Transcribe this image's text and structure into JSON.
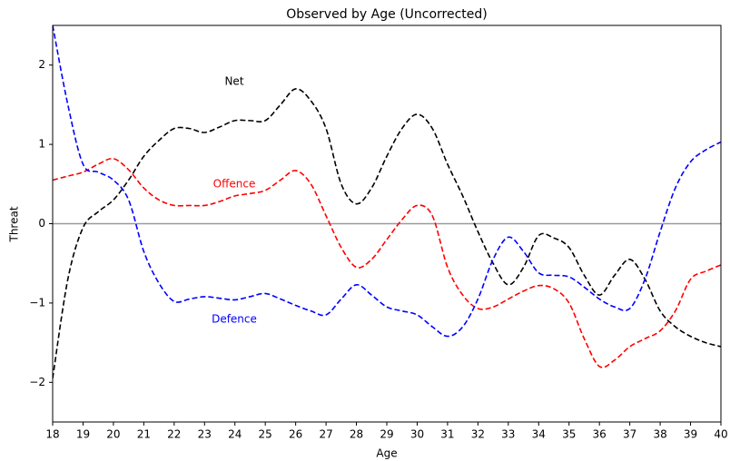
{
  "chart_data": {
    "type": "line",
    "title": "Observed by Age (Uncorrected)",
    "xlabel": "Age",
    "ylabel": "Threat",
    "x": [
      18,
      18.5,
      19,
      19.5,
      20,
      20.5,
      21,
      21.5,
      22,
      22.5,
      23,
      23.5,
      24,
      24.5,
      25,
      25.5,
      26,
      26.5,
      27,
      27.5,
      28,
      28.5,
      29,
      29.5,
      30,
      30.5,
      31,
      31.5,
      32,
      32.5,
      33,
      33.5,
      34,
      34.5,
      35,
      35.5,
      36,
      36.5,
      37,
      37.5,
      38,
      38.5,
      39,
      39.5,
      40
    ],
    "series": [
      {
        "name": "Net",
        "color": "#000000",
        "values": [
          -1.95,
          -0.7,
          -0.05,
          0.15,
          0.3,
          0.55,
          0.85,
          1.05,
          1.2,
          1.2,
          1.15,
          1.22,
          1.3,
          1.3,
          1.3,
          1.5,
          1.7,
          1.55,
          1.2,
          0.5,
          0.25,
          0.45,
          0.85,
          1.2,
          1.38,
          1.2,
          0.75,
          0.35,
          -0.1,
          -0.5,
          -0.77,
          -0.55,
          -0.15,
          -0.18,
          -0.3,
          -0.65,
          -0.9,
          -0.65,
          -0.45,
          -0.7,
          -1.1,
          -1.3,
          -1.42,
          -1.5,
          -1.55
        ]
      },
      {
        "name": "Offence",
        "color": "#ff0000",
        "values": [
          0.55,
          0.6,
          0.65,
          0.75,
          0.82,
          0.68,
          0.45,
          0.3,
          0.23,
          0.23,
          0.23,
          0.28,
          0.35,
          0.38,
          0.42,
          0.55,
          0.67,
          0.5,
          0.1,
          -0.3,
          -0.55,
          -0.45,
          -0.2,
          0.05,
          0.23,
          0.1,
          -0.55,
          -0.9,
          -1.07,
          -1.05,
          -0.95,
          -0.85,
          -0.78,
          -0.82,
          -1.0,
          -1.45,
          -1.8,
          -1.72,
          -1.55,
          -1.45,
          -1.35,
          -1.1,
          -0.7,
          -0.6,
          -0.52
        ]
      },
      {
        "name": "Defence",
        "color": "#0000ff",
        "values": [
          2.5,
          1.5,
          0.75,
          0.65,
          0.55,
          0.3,
          -0.35,
          -0.75,
          -0.98,
          -0.95,
          -0.92,
          -0.94,
          -0.96,
          -0.92,
          -0.88,
          -0.95,
          -1.03,
          -1.1,
          -1.15,
          -0.95,
          -0.77,
          -0.9,
          -1.05,
          -1.1,
          -1.15,
          -1.3,
          -1.42,
          -1.3,
          -0.95,
          -0.45,
          -0.17,
          -0.35,
          -0.62,
          -0.65,
          -0.67,
          -0.8,
          -0.95,
          -1.05,
          -1.07,
          -0.7,
          -0.1,
          0.45,
          0.78,
          0.93,
          1.03
        ]
      }
    ],
    "hline": 0,
    "hline_color": "#999999",
    "xlim": [
      18,
      40
    ],
    "ylim": [
      -2.5,
      2.5
    ],
    "xticks": [
      18,
      19,
      20,
      21,
      22,
      23,
      24,
      25,
      26,
      27,
      28,
      29,
      30,
      31,
      32,
      33,
      34,
      35,
      36,
      37,
      38,
      39,
      40
    ],
    "yticks": [
      {
        "value": -2,
        "label": "−2"
      },
      {
        "value": -1,
        "label": "−1"
      },
      0,
      1,
      2
    ]
  }
}
